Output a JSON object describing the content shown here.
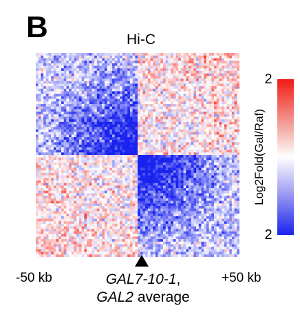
{
  "panel_label": "B",
  "chart_data": {
    "type": "heatmap",
    "title": "Hi-C",
    "xticks": [
      "-50 kb",
      "+50 kb"
    ],
    "xlabel": {
      "line1_italic": "GAL7-10-1",
      "line1_suffix": ",",
      "line2_italic": "GAL2",
      "line2_suffix": " average"
    },
    "colorbar": {
      "label": "Log2Fold(Gal/Raf)",
      "top_value": "2",
      "bottom_value": "2",
      "high_color": "#f11b14",
      "mid_color": "#ffffff",
      "low_color": "#1a23ee"
    },
    "grid_size": 80,
    "pattern": "Blue depletion (Gal < Raf) in the upper-left and lower-right quadrants forming a bow-tie centered on the locus; noisy red/white/blue elsewhere with red enrichment at far corners"
  }
}
